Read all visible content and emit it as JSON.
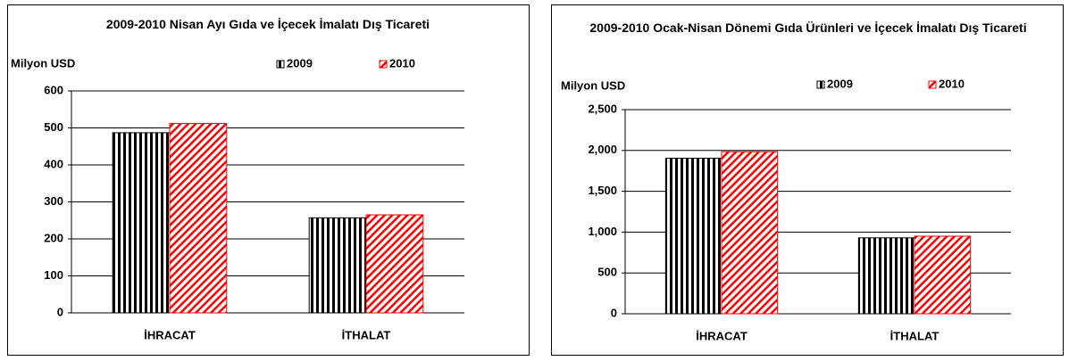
{
  "chart_data": [
    {
      "type": "bar",
      "title": "2009-2010 Nisan Ayı Gıda ve İçecek İmalatı Dış Ticareti",
      "y_label": "Milyon USD",
      "categories": [
        "İHRACAT",
        "İTHALAT"
      ],
      "series": [
        {
          "name": "2009",
          "color": "#000000",
          "values": [
            487,
            257
          ]
        },
        {
          "name": "2010",
          "color": "#ff0000",
          "values": [
            512,
            265
          ]
        }
      ],
      "ylim": [
        0,
        600
      ],
      "yticks": [
        0,
        100,
        200,
        300,
        400,
        500,
        600
      ],
      "grid": true
    },
    {
      "type": "bar",
      "title": "2009-2010 Ocak-Nisan Dönemi Gıda Ürünleri ve İçecek İmalatı Dış Ticareti",
      "y_label": "Milyon USD",
      "categories": [
        "İHRACAT",
        "İTHALAT"
      ],
      "series": [
        {
          "name": "2009",
          "color": "#000000",
          "values": [
            1905,
            930
          ]
        },
        {
          "name": "2010",
          "color": "#ff0000",
          "values": [
            1985,
            950
          ]
        }
      ],
      "ylim": [
        0,
        2500
      ],
      "yticks": [
        0,
        500,
        {
          "value": 1000,
          "label": "1,000"
        },
        {
          "value": 1500,
          "label": "1,500"
        },
        {
          "value": 2000,
          "label": "2,000"
        },
        {
          "value": 2500,
          "label": "2,500"
        }
      ],
      "grid": true
    }
  ]
}
